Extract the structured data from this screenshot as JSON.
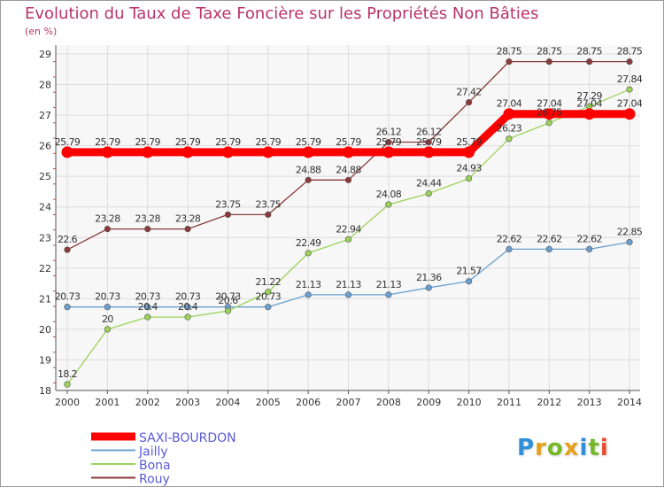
{
  "chart_data": {
    "type": "line",
    "title": "Evolution du Taux de Taxe Foncière sur les Propriétés Non Bâties",
    "subtitle": "(en %)",
    "x": [
      "2000",
      "2001",
      "2002",
      "2003",
      "2004",
      "2005",
      "2006",
      "2007",
      "2008",
      "2009",
      "2010",
      "2011",
      "2012",
      "2013",
      "2014"
    ],
    "ylim": [
      18,
      29
    ],
    "yticks": [
      18,
      19,
      20,
      21,
      22,
      23,
      24,
      25,
      26,
      27,
      28,
      29
    ],
    "grid": true,
    "legend_position": "bottom-left",
    "series": [
      {
        "name": "SAXI-BOURDON",
        "color": "#ff0000",
        "values": [
          25.79,
          25.79,
          25.79,
          25.79,
          25.79,
          25.79,
          25.79,
          25.79,
          25.79,
          25.79,
          25.79,
          27.04,
          27.04,
          27.04,
          27.04
        ],
        "labels": [
          "25.79",
          "25.79",
          "25.79",
          "25.79",
          "25.79",
          "25.79",
          "25.79",
          "25.79",
          "25.79",
          "25.79",
          "25.79",
          "27.04",
          "27.04",
          "27.04",
          "27.04"
        ]
      },
      {
        "name": "Jailly",
        "color": "#6aa0d0",
        "values": [
          20.73,
          20.73,
          20.73,
          20.73,
          20.73,
          20.73,
          21.13,
          21.13,
          21.13,
          21.36,
          21.57,
          22.62,
          22.62,
          22.62,
          22.85
        ],
        "labels": [
          "20.73",
          "20.73",
          "20.73",
          "20.73",
          "20.73",
          "20.73",
          "21.13",
          "21.13",
          "21.13",
          "21.36",
          "21.57",
          "22.62",
          "22.62",
          "22.62",
          "22.85"
        ]
      },
      {
        "name": "Bona",
        "color": "#9bd35a",
        "values": [
          18.2,
          20,
          20.4,
          20.4,
          20.6,
          21.22,
          22.49,
          22.94,
          24.08,
          24.44,
          24.93,
          26.23,
          26.75,
          27.29,
          27.84
        ],
        "labels": [
          "18.2",
          "20",
          "20.4",
          "20.4",
          "20.6",
          "21.22",
          "22.49",
          "22.94",
          "24.08",
          "24.44",
          "24.93",
          "26.23",
          "26.75",
          "27.29",
          "27.84"
        ]
      },
      {
        "name": "Rouy",
        "color": "#8b3a3a",
        "values": [
          22.6,
          23.28,
          23.28,
          23.28,
          23.75,
          23.75,
          24.88,
          24.88,
          26.12,
          26.12,
          27.42,
          28.75,
          28.75,
          28.75,
          28.75
        ],
        "labels": [
          "22.6",
          "23.28",
          "23.28",
          "23.28",
          "23.75",
          "23.75",
          "24.88",
          "24.88",
          "26.12",
          "26.12",
          "27.42",
          "28.75",
          "28.75",
          "28.75",
          "28.75"
        ]
      }
    ]
  },
  "logo": {
    "letters": [
      "P",
      "r",
      "o",
      "x",
      "i",
      "t",
      "i"
    ]
  }
}
